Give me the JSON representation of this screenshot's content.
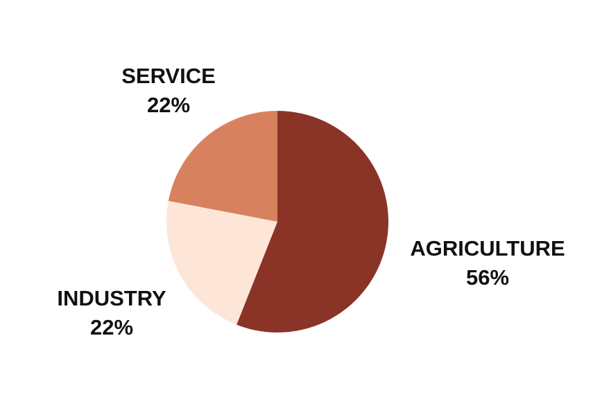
{
  "chart_data": {
    "type": "pie",
    "slices": [
      {
        "label": "AGRICULTURE",
        "value": 56,
        "value_label": "56%",
        "color": "#8a3428"
      },
      {
        "label": "INDUSTRY",
        "value": 22,
        "value_label": "22%",
        "color": "#fde6d8"
      },
      {
        "label": "SERVICE",
        "value": 22,
        "value_label": "22%",
        "color": "#d8815f"
      }
    ],
    "start": "top (12 o'clock)",
    "direction": "clockwise",
    "legend": "none (labels outside slices)"
  }
}
